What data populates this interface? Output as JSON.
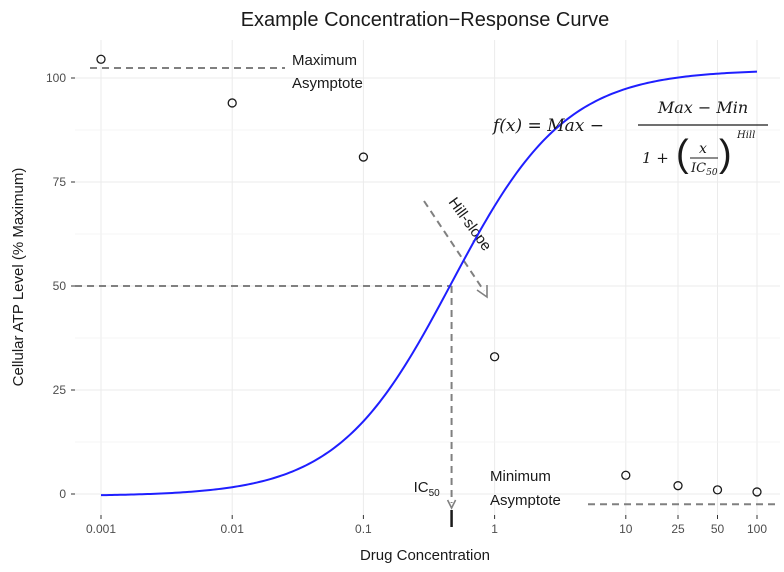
{
  "chart_data": {
    "type": "scatter",
    "title": "Example Concentration−Response Curve",
    "xlabel": "Drug Concentration",
    "ylabel": "Cellular ATP Level (% Maximum)",
    "x_scale": "log",
    "xlim": [
      0.001,
      100
    ],
    "ylim": [
      -3,
      107
    ],
    "x_ticks": [
      0.001,
      0.01,
      0.1,
      1,
      10,
      25,
      50,
      100
    ],
    "x_tick_labels": [
      "0.001",
      "0.01",
      "0.1",
      "1",
      "10",
      "25",
      "50",
      "100"
    ],
    "y_ticks": [
      0,
      25,
      50,
      75,
      100
    ],
    "y_tick_labels": [
      "0",
      "25",
      "50",
      "75",
      "100"
    ],
    "grid": true,
    "points": [
      {
        "x": 0.001,
        "y": 104.5
      },
      {
        "x": 0.01,
        "y": 94
      },
      {
        "x": 0.1,
        "y": 81
      },
      {
        "x": 1,
        "y": 33
      },
      {
        "x": 10,
        "y": 4.5
      },
      {
        "x": 25,
        "y": 2
      },
      {
        "x": 50,
        "y": 1
      },
      {
        "x": 100,
        "y": 0.5
      }
    ],
    "fit": {
      "max": 102,
      "min": -0.5,
      "ic50": 0.47,
      "hill": 1.0,
      "color": "#1f1fff"
    },
    "annotations": {
      "max_label_line1": "Maximum",
      "max_label_line2": "Asymptote",
      "min_label_line1": "Minimum",
      "min_label_line2": "Asymptote",
      "hill_label": "Hill-slope",
      "ic50_main": "IC",
      "ic50_sub": "50"
    },
    "formula": {
      "lhs": "f(x) = Max −",
      "numerator": "Max − Min",
      "denom_one": "1 +",
      "frac_num": "x",
      "frac_den_main": "IC",
      "frac_den_sub": "50",
      "exponent": "Hill"
    }
  },
  "colors": {
    "panel": "#ffffff",
    "grid": "#ebebeb",
    "curve": "#1f1fff",
    "dash": "#808080",
    "point": "#1a1a1a"
  }
}
